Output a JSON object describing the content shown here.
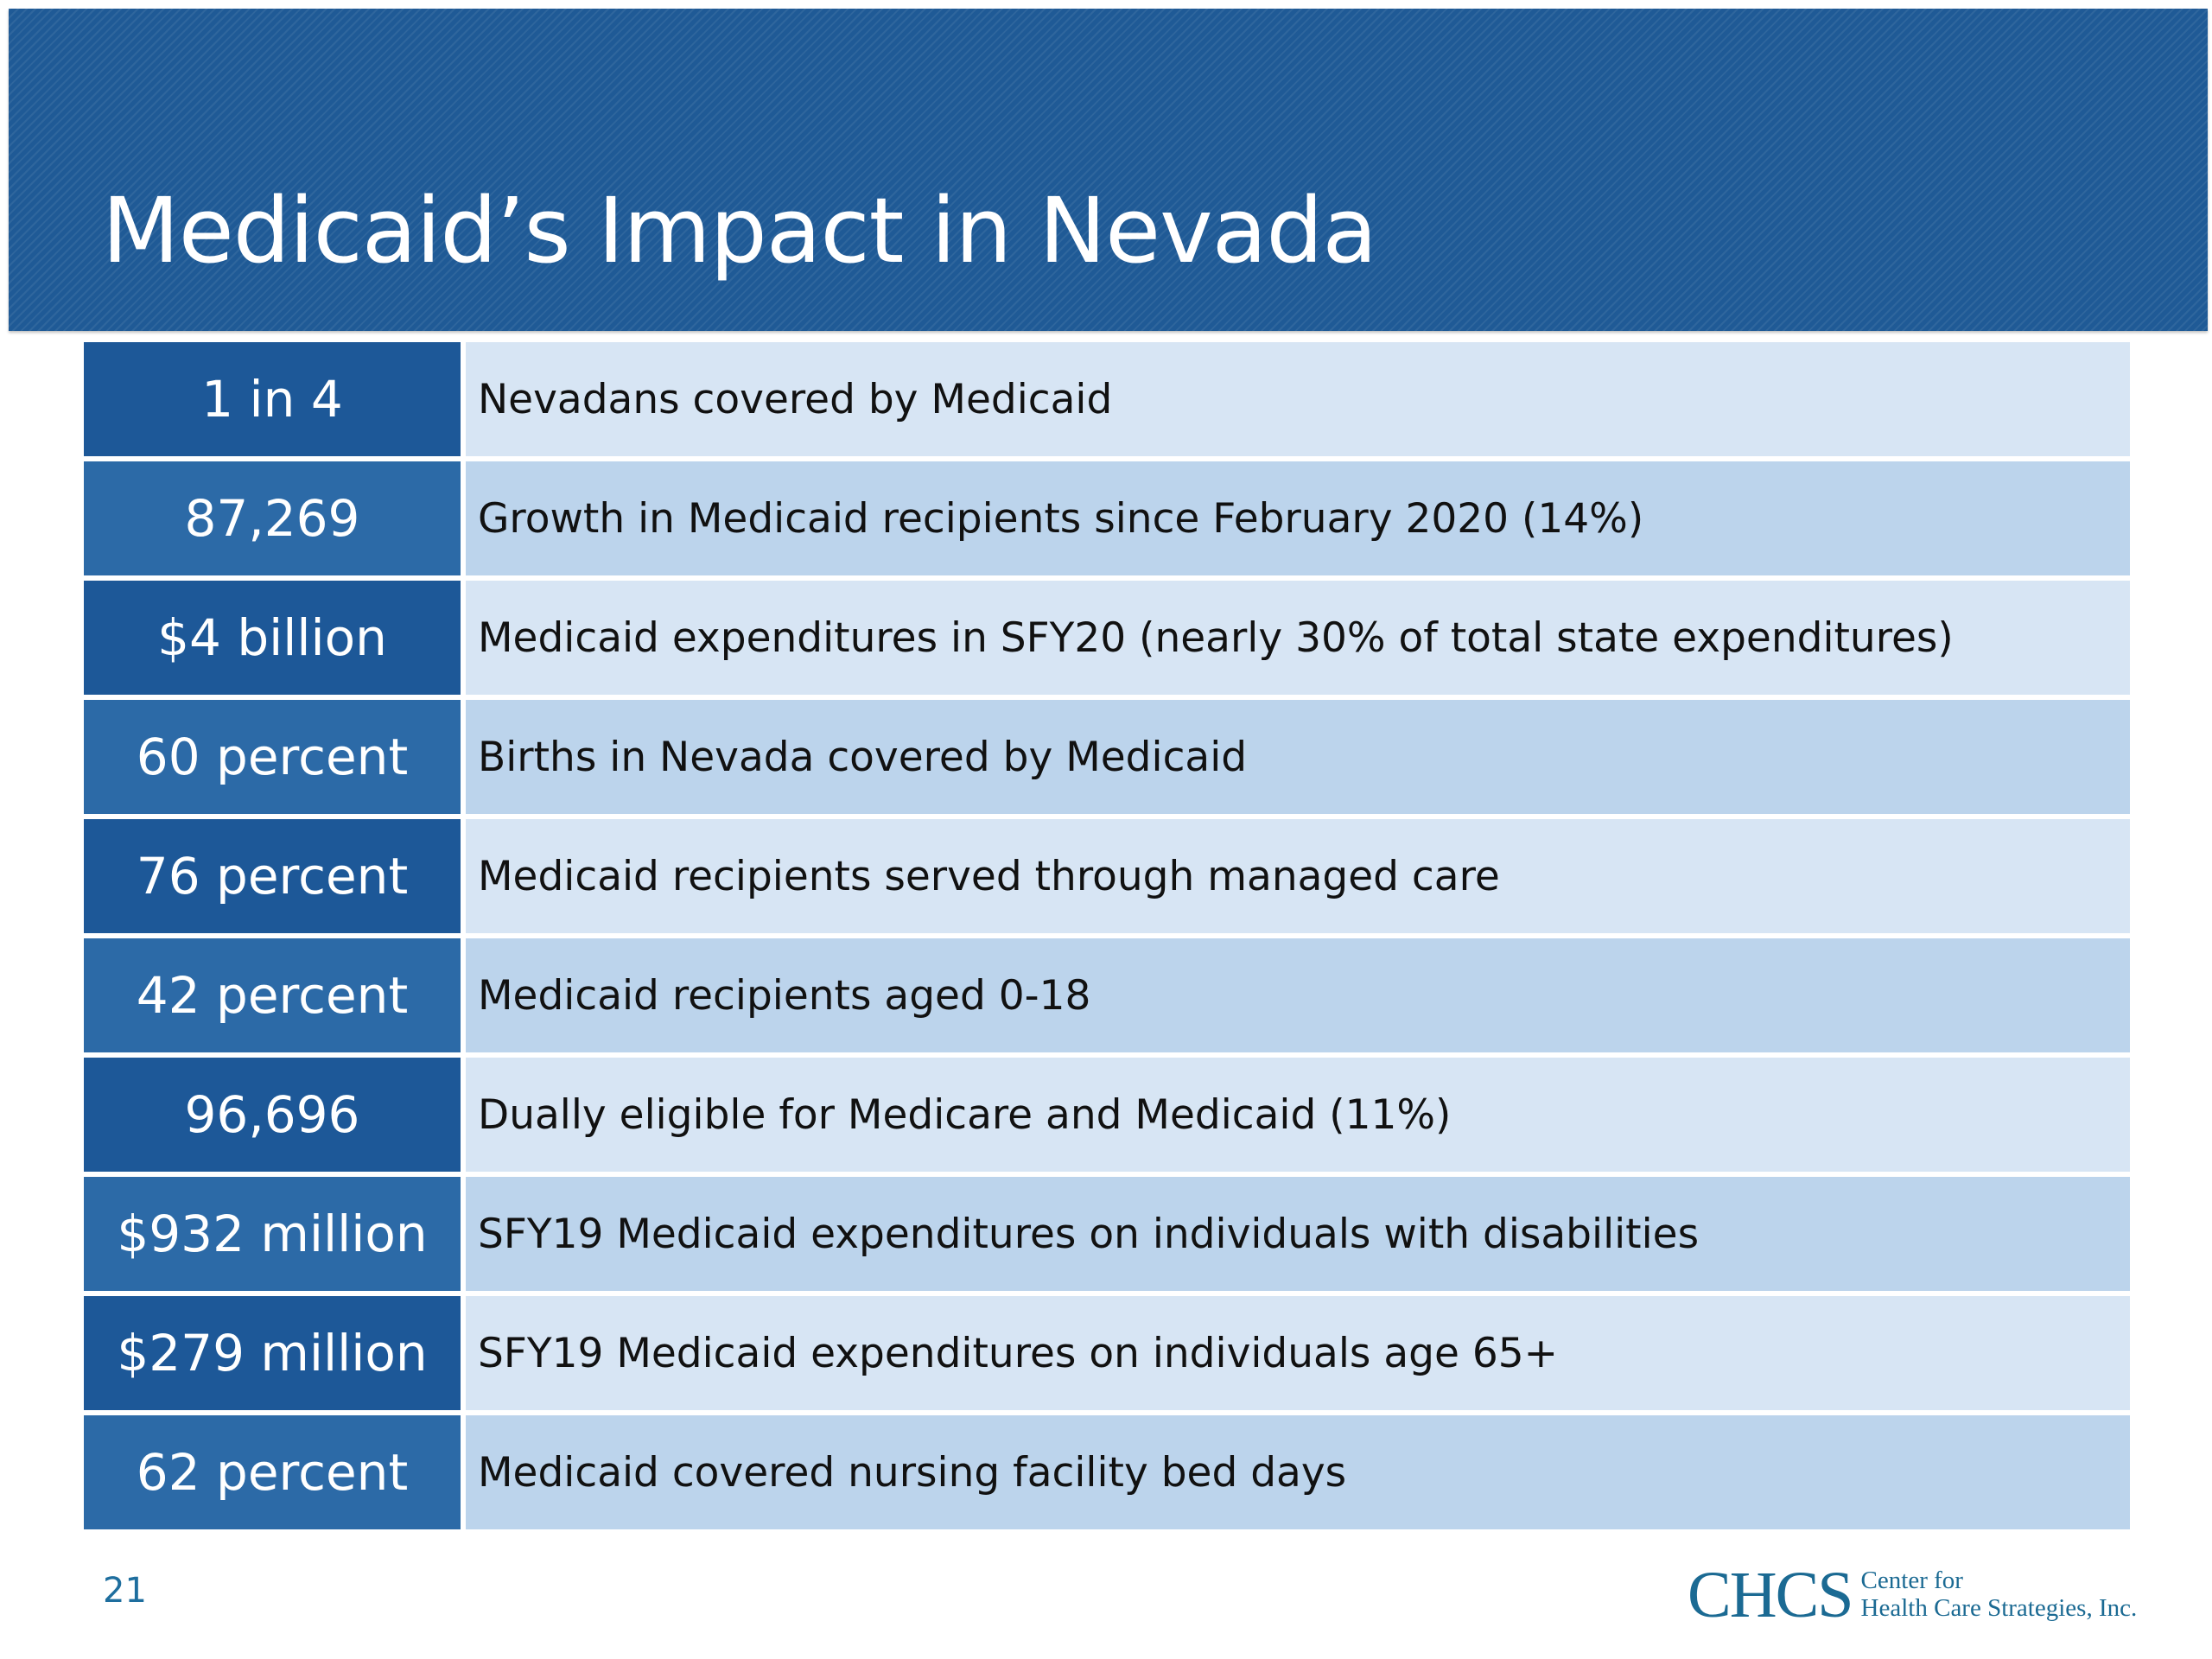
{
  "slide": {
    "title": "Medicaid’s Impact in Nevada",
    "page_number": "21"
  },
  "stats": [
    {
      "value": "1 in 4",
      "description": "Nevadans covered by Medicaid"
    },
    {
      "value": "87,269",
      "description": "Growth in Medicaid recipients since February 2020 (14%)"
    },
    {
      "value": "$4 billion",
      "description": "Medicaid expenditures in SFY20 (nearly 30% of total state expenditures)"
    },
    {
      "value": "60 percent",
      "description": "Births in Nevada covered by Medicaid"
    },
    {
      "value": "76 percent",
      "description": "Medicaid recipients served through managed care"
    },
    {
      "value": "42 percent",
      "description": "Medicaid recipients aged 0-18"
    },
    {
      "value": "96,696",
      "description": "Dually eligible for Medicare and Medicaid (11%)"
    },
    {
      "value": "$932 million",
      "description": "SFY19 Medicaid expenditures on individuals with disabilities"
    },
    {
      "value": "$279 million",
      "description": "SFY19 Medicaid expenditures on individuals age 65+"
    },
    {
      "value": "62 percent",
      "description": "Medicaid covered nursing facility bed days"
    }
  ],
  "logo": {
    "mark": "CHCS",
    "line1": "Center for",
    "line2": "Health Care Strategies, Inc."
  },
  "colors": {
    "header": "#1f5a96",
    "value_dark": "#1d5898",
    "value_light": "#2c6aa7",
    "desc_light": "#d7e5f4",
    "desc_mid": "#bcd4ec",
    "logo": "#1b6a93"
  }
}
